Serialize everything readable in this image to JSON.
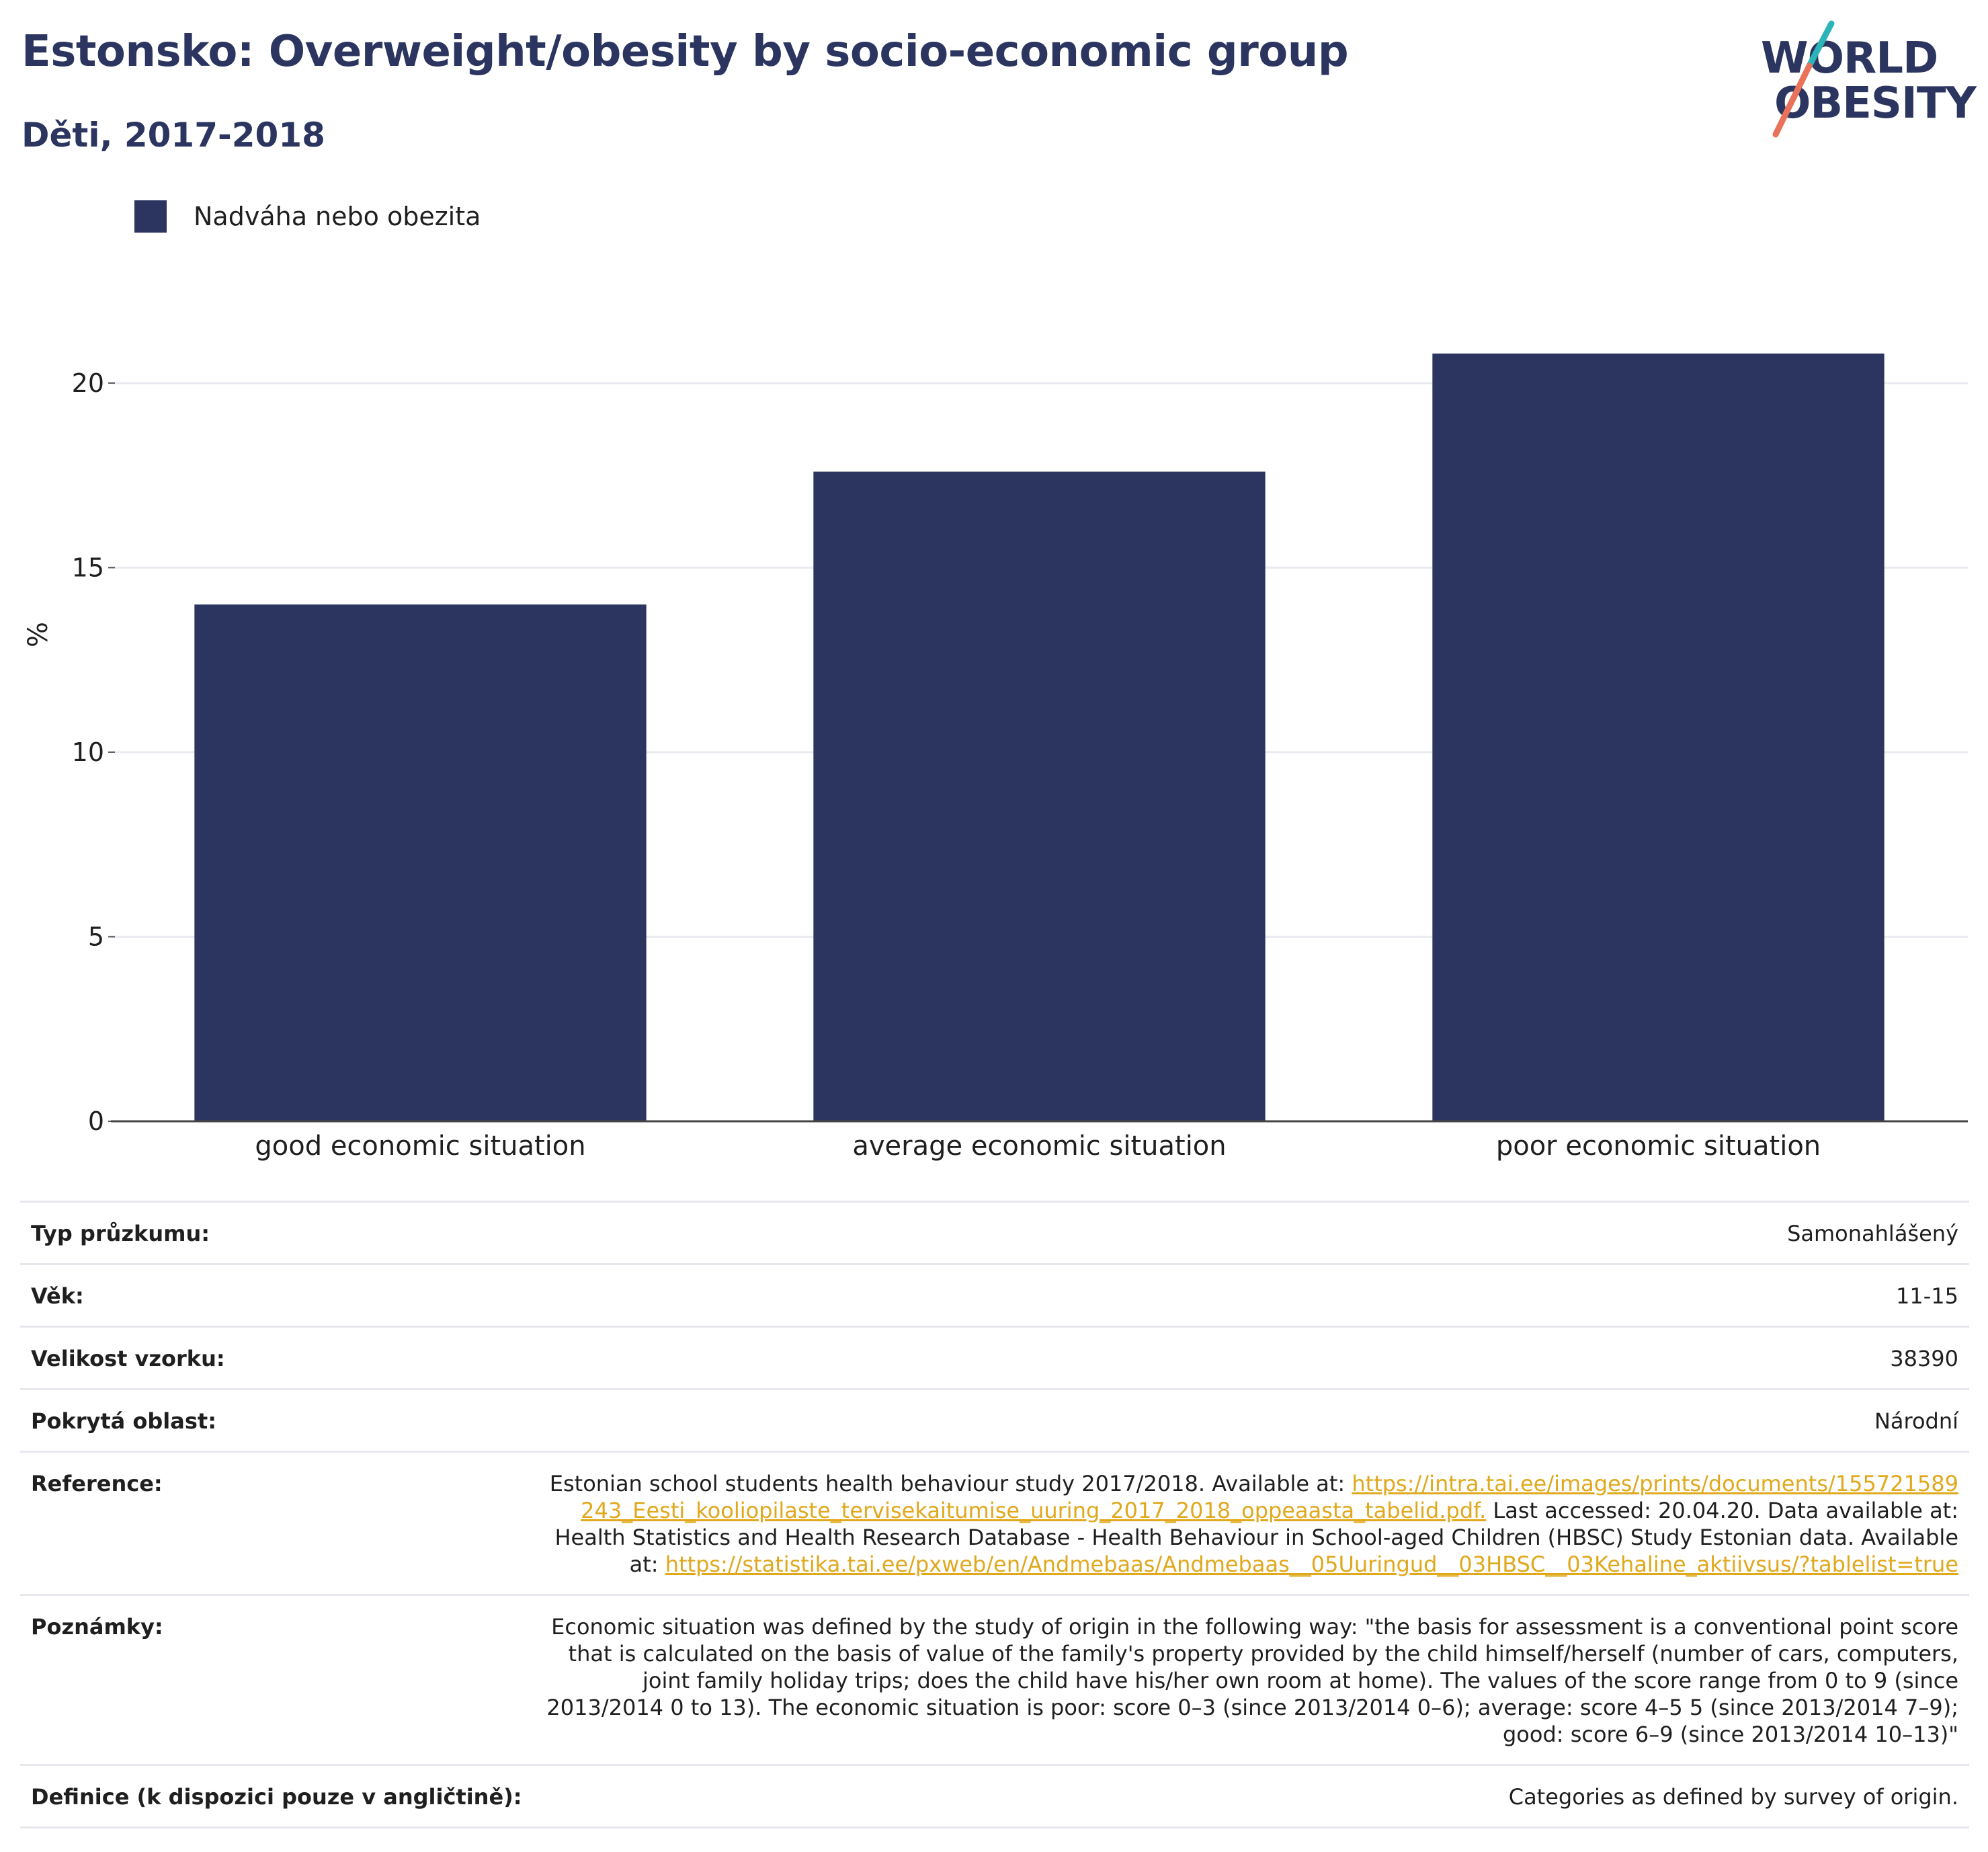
{
  "header": {
    "title": "Estonsko: Overweight/obesity by socio-economic group",
    "subtitle": "Děti, 2017-2018"
  },
  "logo": {
    "line1": "WORLD",
    "line2": "OBESITY",
    "colors": {
      "text": "#2b3560",
      "slash_teal": "#2bb5b8",
      "slash_coral": "#e8735a"
    }
  },
  "chart_data": {
    "type": "bar",
    "categories": [
      "good economic situation",
      "average economic situation",
      "poor economic situation"
    ],
    "series": [
      {
        "name": "Nadváha nebo obezita",
        "values": [
          14.0,
          17.6,
          20.8
        ],
        "color": "#2b3560"
      }
    ],
    "ylabel": "%",
    "ylim": [
      0,
      22
    ],
    "yticks": [
      0,
      5,
      10,
      15,
      20
    ],
    "grid": true,
    "legend_position": "top-left"
  },
  "meta": {
    "rows": [
      {
        "key": "Typ průzkumu:",
        "value": "Samonahlášený"
      },
      {
        "key": "Věk:",
        "value": "11-15"
      },
      {
        "key": "Velikost vzorku:",
        "value": "38390"
      },
      {
        "key": "Pokrytá oblast:",
        "value": "Národní"
      }
    ],
    "reference": {
      "key": "Reference:",
      "text1": "Estonian school students health behaviour study 2017/2018. Available at:",
      "link1": "https://intra.tai.ee/images/prints/documents/155721589243_Eesti_kooliopilaste_tervisekaitumise_uuring_2017_2018_oppeaasta_tabelid.pdf.",
      "text2": "Last accessed: 20.04.20. Data available at: Health Statistics and Health Research Database - Health Behaviour in School-aged Children (HBSC) Study Estonian data. Available at:",
      "link2": "https://statistika.tai.ee/pxweb/en/Andmebaas/Andmebaas__05Uuringud__03HBSC__03Kehaline_aktiivsus/?tablelist=true"
    },
    "notes": {
      "key": "Poznámky:",
      "value": "Economic situation was defined by the study of origin in the following way: \"the basis for assessment is a conventional point score that is calculated on the basis of value of the family's property provided by the child himself/herself (number of cars, computers, joint family holiday trips; does the child have his/her own room at home). The values of the score range from 0 to 9 (since 2013/2014 0 to 13). The economic situation is poor: score 0–3 (since 2013/2014 0–6); average: score 4–5 5 (since 2013/2014 7–9); good: score 6–9 (since 2013/2014 10–13)\""
    },
    "definitions": {
      "key": "Definice (k dispozici pouze v angličtině):",
      "value": "Categories as defined by survey of origin."
    }
  }
}
